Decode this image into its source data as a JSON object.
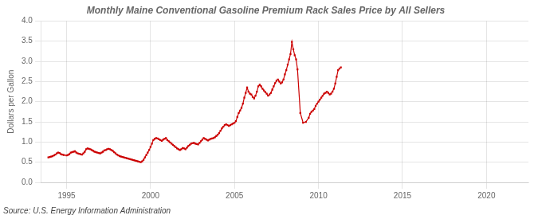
{
  "chart_data": {
    "type": "line",
    "title": "Monthly Maine Conventional Gasoline Premium Rack Sales Price by All Sellers",
    "ylabel": "Dollars per Gallon",
    "source": "Source: U.S. Energy Information Administration",
    "color": "#cc0000",
    "marker": "square",
    "grid": true,
    "xlim": [
      1993.5,
      2022.5
    ],
    "xticks": [
      1995,
      2000,
      2005,
      2010,
      2015,
      2020
    ],
    "ylim": [
      0.0,
      4.0
    ],
    "yticks": [
      {
        "value": 0.0,
        "label": "0.0"
      },
      0.5,
      {
        "value": 1.0,
        "label": "1.0"
      },
      1.5,
      {
        "value": 2.0,
        "label": "2.0"
      },
      2.5,
      {
        "value": 3.0,
        "label": "3.0"
      },
      3.5,
      {
        "value": 4.0,
        "label": "4.0"
      }
    ],
    "x": [
      1993.917,
      1994.0,
      1994.083,
      1994.167,
      1994.25,
      1994.333,
      1994.417,
      1994.5,
      1994.583,
      1994.667,
      1994.75,
      1994.833,
      1995.0,
      1995.083,
      1995.167,
      1995.25,
      1995.333,
      1995.417,
      1995.5,
      1995.583,
      1995.667,
      1995.75,
      1995.833,
      1995.917,
      1996.0,
      1996.083,
      1996.167,
      1996.25,
      1996.333,
      1996.417,
      1996.5,
      1996.583,
      1996.667,
      1996.75,
      1996.833,
      1996.917,
      1997.0,
      1997.083,
      1997.167,
      1997.25,
      1997.333,
      1997.417,
      1997.5,
      1997.583,
      1997.667,
      1997.75,
      1997.833,
      1997.917,
      1998.0,
      1998.083,
      1998.167,
      1998.25,
      1998.333,
      1998.417,
      1998.5,
      1998.583,
      1998.667,
      1998.75,
      1998.833,
      1998.917,
      1999.0,
      1999.083,
      1999.167,
      1999.25,
      1999.333,
      1999.417,
      1999.5,
      1999.583,
      1999.667,
      1999.75,
      1999.833,
      1999.917,
      2000.0,
      2000.083,
      2000.167,
      2000.25,
      2000.333,
      2000.417,
      2000.5,
      2000.583,
      2000.667,
      2000.75,
      2000.833,
      2000.917,
      2001.0,
      2001.083,
      2001.167,
      2001.25,
      2001.333,
      2001.417,
      2001.5,
      2001.583,
      2001.667,
      2001.75,
      2001.833,
      2001.917,
      2002.0,
      2002.083,
      2002.167,
      2002.25,
      2002.333,
      2002.417,
      2002.5,
      2002.583,
      2002.667,
      2002.75,
      2002.833,
      2002.917,
      2003.0,
      2003.083,
      2003.167,
      2003.25,
      2003.333,
      2003.417,
      2003.5,
      2003.583,
      2003.667,
      2003.75,
      2003.833,
      2003.917,
      2004.0,
      2004.083,
      2004.167,
      2004.25,
      2004.333,
      2004.417,
      2004.5,
      2004.583,
      2004.667,
      2004.75,
      2004.833,
      2004.917,
      2005.0,
      2005.083,
      2005.167,
      2005.25,
      2005.333,
      2005.417,
      2005.5,
      2005.583,
      2005.667,
      2005.75,
      2005.833,
      2005.917,
      2006.0,
      2006.083,
      2006.167,
      2006.25,
      2006.333,
      2006.417,
      2006.5,
      2006.583,
      2006.667,
      2006.75,
      2006.833,
      2006.917,
      2007.0,
      2007.083,
      2007.167,
      2007.25,
      2007.333,
      2007.417,
      2007.5,
      2007.583,
      2007.667,
      2007.75,
      2007.833,
      2007.917,
      2008.0,
      2008.083,
      2008.167,
      2008.25,
      2008.333,
      2008.417,
      2008.5,
      2008.583,
      2008.667,
      2008.75,
      2008.917,
      2009.083,
      2009.25,
      2009.417,
      2009.5,
      2009.583,
      2009.667,
      2009.75,
      2009.833,
      2009.917,
      2010.0,
      2010.083,
      2010.167,
      2010.25,
      2010.333,
      2010.417,
      2010.5,
      2010.583,
      2010.667,
      2010.75,
      2010.833,
      2010.917,
      2011.0,
      2011.083,
      2011.167,
      2011.25,
      2011.333
    ],
    "values": [
      0.62,
      0.63,
      0.64,
      0.65,
      0.67,
      0.69,
      0.72,
      0.74,
      0.73,
      0.7,
      0.69,
      0.68,
      0.67,
      0.68,
      0.7,
      0.74,
      0.75,
      0.76,
      0.77,
      0.74,
      0.72,
      0.71,
      0.7,
      0.69,
      0.72,
      0.76,
      0.82,
      0.84,
      0.83,
      0.82,
      0.8,
      0.78,
      0.76,
      0.75,
      0.74,
      0.73,
      0.72,
      0.74,
      0.76,
      0.79,
      0.8,
      0.82,
      0.83,
      0.82,
      0.8,
      0.78,
      0.75,
      0.72,
      0.69,
      0.67,
      0.65,
      0.64,
      0.63,
      0.62,
      0.61,
      0.6,
      0.59,
      0.58,
      0.57,
      0.56,
      0.55,
      0.54,
      0.53,
      0.52,
      0.51,
      0.5,
      0.52,
      0.56,
      0.62,
      0.68,
      0.74,
      0.8,
      0.88,
      0.96,
      1.05,
      1.08,
      1.1,
      1.09,
      1.07,
      1.05,
      1.03,
      1.06,
      1.08,
      1.1,
      1.05,
      1.02,
      0.99,
      0.96,
      0.93,
      0.9,
      0.87,
      0.84,
      0.82,
      0.8,
      0.82,
      0.85,
      0.84,
      0.82,
      0.86,
      0.9,
      0.93,
      0.96,
      0.97,
      0.98,
      0.96,
      0.95,
      0.94,
      0.98,
      1.02,
      1.06,
      1.1,
      1.08,
      1.06,
      1.04,
      1.06,
      1.08,
      1.09,
      1.1,
      1.12,
      1.15,
      1.18,
      1.22,
      1.28,
      1.34,
      1.38,
      1.42,
      1.44,
      1.42,
      1.4,
      1.42,
      1.44,
      1.46,
      1.48,
      1.52,
      1.62,
      1.72,
      1.78,
      1.85,
      1.95,
      2.1,
      2.22,
      2.35,
      2.25,
      2.2,
      2.18,
      2.12,
      2.08,
      2.15,
      2.25,
      2.38,
      2.42,
      2.38,
      2.32,
      2.28,
      2.24,
      2.2,
      2.15,
      2.18,
      2.22,
      2.3,
      2.38,
      2.46,
      2.52,
      2.55,
      2.5,
      2.45,
      2.48,
      2.55,
      2.68,
      2.78,
      2.92,
      3.05,
      3.18,
      3.48,
      3.3,
      3.15,
      3.05,
      2.8,
      1.72,
      1.48,
      1.5,
      1.6,
      1.7,
      1.75,
      1.78,
      1.82,
      1.9,
      1.95,
      2.0,
      2.05,
      2.1,
      2.15,
      2.2,
      2.22,
      2.25,
      2.22,
      2.18,
      2.2,
      2.25,
      2.32,
      2.45,
      2.62,
      2.78,
      2.82,
      2.85
    ]
  }
}
